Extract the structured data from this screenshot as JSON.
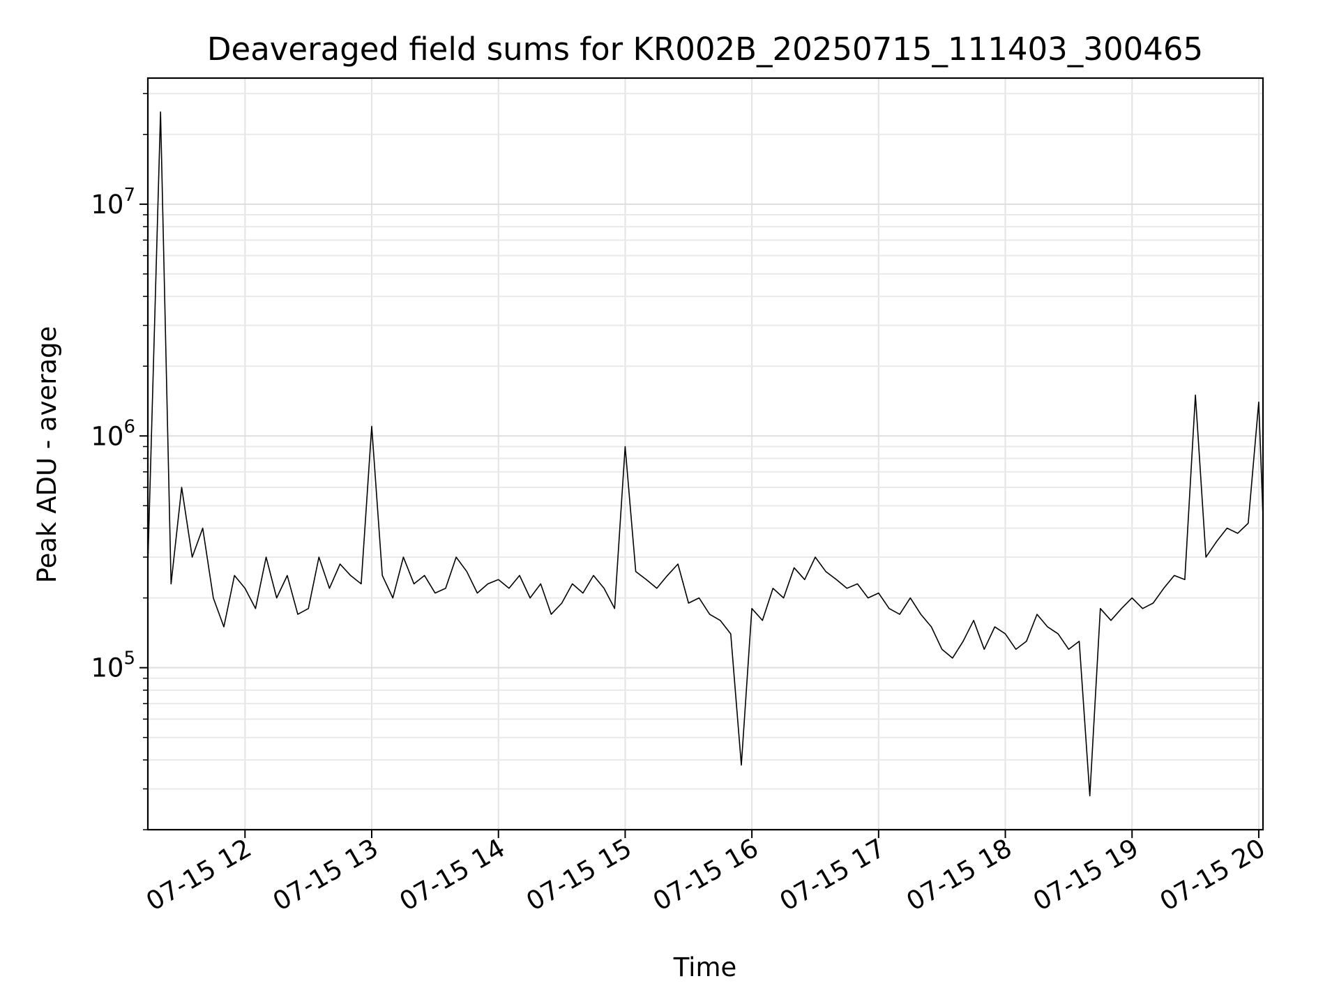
{
  "chart_data": {
    "type": "line",
    "title": "Deaveraged field sums for KR002B_20250715_111403_300465",
    "xlabel": "Time",
    "ylabel": "Peak ADU - average",
    "yscale": "log",
    "ylim": [
      20000,
      35000000
    ],
    "xlim": [
      "2025-07-15 11:14",
      "2025-07-15 20:02"
    ],
    "grid": true,
    "x_ticks": [
      {
        "value": "2025-07-15 12:00",
        "label": "07-15 12"
      },
      {
        "value": "2025-07-15 13:00",
        "label": "07-15 13"
      },
      {
        "value": "2025-07-15 14:00",
        "label": "07-15 14"
      },
      {
        "value": "2025-07-15 15:00",
        "label": "07-15 15"
      },
      {
        "value": "2025-07-15 16:00",
        "label": "07-15 16"
      },
      {
        "value": "2025-07-15 17:00",
        "label": "07-15 17"
      },
      {
        "value": "2025-07-15 18:00",
        "label": "07-15 18"
      },
      {
        "value": "2025-07-15 19:00",
        "label": "07-15 19"
      },
      {
        "value": "2025-07-15 20:00",
        "label": "07-15 20"
      }
    ],
    "y_ticks": [
      {
        "value": 100000,
        "base": "10",
        "exp": "5"
      },
      {
        "value": 1000000,
        "base": "10",
        "exp": "6"
      },
      {
        "value": 10000000,
        "base": "10",
        "exp": "7"
      }
    ],
    "series": [
      {
        "color": "#000000",
        "x": [
          "2025-07-15 11:14",
          "2025-07-15 11:20",
          "2025-07-15 11:25",
          "2025-07-15 11:30",
          "2025-07-15 11:35",
          "2025-07-15 11:40",
          "2025-07-15 11:45",
          "2025-07-15 11:50",
          "2025-07-15 11:55",
          "2025-07-15 12:00",
          "2025-07-15 12:05",
          "2025-07-15 12:10",
          "2025-07-15 12:15",
          "2025-07-15 12:20",
          "2025-07-15 12:25",
          "2025-07-15 12:30",
          "2025-07-15 12:35",
          "2025-07-15 12:40",
          "2025-07-15 12:45",
          "2025-07-15 12:50",
          "2025-07-15 12:55",
          "2025-07-15 13:00",
          "2025-07-15 13:05",
          "2025-07-15 13:10",
          "2025-07-15 13:15",
          "2025-07-15 13:20",
          "2025-07-15 13:25",
          "2025-07-15 13:30",
          "2025-07-15 13:35",
          "2025-07-15 13:40",
          "2025-07-15 13:45",
          "2025-07-15 13:50",
          "2025-07-15 13:55",
          "2025-07-15 14:00",
          "2025-07-15 14:05",
          "2025-07-15 14:10",
          "2025-07-15 14:15",
          "2025-07-15 14:20",
          "2025-07-15 14:25",
          "2025-07-15 14:30",
          "2025-07-15 14:35",
          "2025-07-15 14:40",
          "2025-07-15 14:45",
          "2025-07-15 14:50",
          "2025-07-15 14:55",
          "2025-07-15 15:00",
          "2025-07-15 15:05",
          "2025-07-15 15:10",
          "2025-07-15 15:15",
          "2025-07-15 15:20",
          "2025-07-15 15:25",
          "2025-07-15 15:30",
          "2025-07-15 15:35",
          "2025-07-15 15:40",
          "2025-07-15 15:45",
          "2025-07-15 15:50",
          "2025-07-15 15:55",
          "2025-07-15 16:00",
          "2025-07-15 16:05",
          "2025-07-15 16:10",
          "2025-07-15 16:15",
          "2025-07-15 16:20",
          "2025-07-15 16:25",
          "2025-07-15 16:30",
          "2025-07-15 16:35",
          "2025-07-15 16:40",
          "2025-07-15 16:45",
          "2025-07-15 16:50",
          "2025-07-15 16:55",
          "2025-07-15 17:00",
          "2025-07-15 17:05",
          "2025-07-15 17:10",
          "2025-07-15 17:15",
          "2025-07-15 17:20",
          "2025-07-15 17:25",
          "2025-07-15 17:30",
          "2025-07-15 17:35",
          "2025-07-15 17:40",
          "2025-07-15 17:45",
          "2025-07-15 17:50",
          "2025-07-15 17:55",
          "2025-07-15 18:00",
          "2025-07-15 18:05",
          "2025-07-15 18:10",
          "2025-07-15 18:15",
          "2025-07-15 18:20",
          "2025-07-15 18:25",
          "2025-07-15 18:30",
          "2025-07-15 18:35",
          "2025-07-15 18:40",
          "2025-07-15 18:45",
          "2025-07-15 18:50",
          "2025-07-15 18:55",
          "2025-07-15 19:00",
          "2025-07-15 19:05",
          "2025-07-15 19:10",
          "2025-07-15 19:15",
          "2025-07-15 19:20",
          "2025-07-15 19:25",
          "2025-07-15 19:30",
          "2025-07-15 19:35",
          "2025-07-15 19:40",
          "2025-07-15 19:45",
          "2025-07-15 19:50",
          "2025-07-15 19:55",
          "2025-07-15 20:00",
          "2025-07-15 20:02"
        ],
        "y": [
          280000,
          25000000,
          230000,
          600000,
          300000,
          400000,
          200000,
          150000,
          250000,
          220000,
          180000,
          300000,
          200000,
          250000,
          170000,
          180000,
          300000,
          220000,
          280000,
          250000,
          230000,
          1100000,
          250000,
          200000,
          300000,
          230000,
          250000,
          210000,
          220000,
          300000,
          260000,
          210000,
          230000,
          240000,
          220000,
          250000,
          200000,
          230000,
          170000,
          190000,
          230000,
          210000,
          250000,
          220000,
          180000,
          900000,
          260000,
          240000,
          220000,
          250000,
          280000,
          190000,
          200000,
          170000,
          160000,
          140000,
          38000,
          180000,
          160000,
          220000,
          200000,
          270000,
          240000,
          300000,
          260000,
          240000,
          220000,
          230000,
          200000,
          210000,
          180000,
          170000,
          200000,
          170000,
          150000,
          120000,
          110000,
          130000,
          160000,
          120000,
          150000,
          140000,
          120000,
          130000,
          170000,
          150000,
          140000,
          120000,
          130000,
          28000,
          180000,
          160000,
          180000,
          200000,
          180000,
          190000,
          220000,
          250000,
          240000,
          1500000,
          300000,
          350000,
          400000,
          380000,
          420000,
          1400000,
          450000
        ]
      }
    ]
  }
}
